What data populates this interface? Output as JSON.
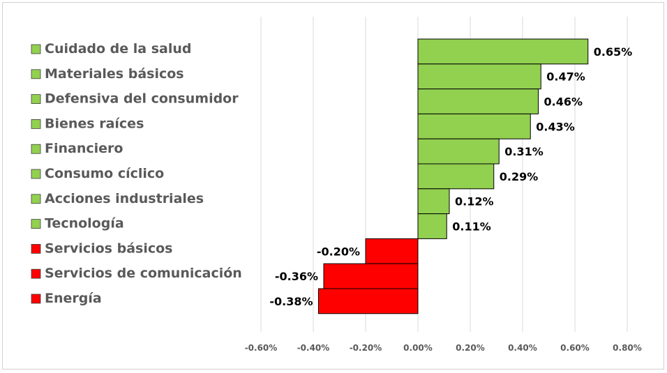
{
  "chart_data": {
    "type": "bar",
    "orientation": "horizontal",
    "categories": [
      "Cuidado de la salud",
      "Materiales básicos",
      "Defensiva del consumidor",
      "Bienes raíces",
      "Financiero",
      "Consumo cíclico",
      "Acciones industriales",
      "Tecnología",
      "Servicios básicos",
      "Servicios de comunicación",
      "Energía"
    ],
    "values": [
      0.65,
      0.47,
      0.46,
      0.43,
      0.31,
      0.29,
      0.12,
      0.11,
      -0.2,
      -0.36,
      -0.38
    ],
    "value_labels": [
      "0.65%",
      "0.47%",
      "0.46%",
      "0.43%",
      "0.31%",
      "0.29%",
      "0.12%",
      "0.11%",
      "-0.20%",
      "-0.36%",
      "-0.38%"
    ],
    "xlim": [
      -0.6,
      0.8
    ],
    "x_ticks": [
      -0.6,
      -0.4,
      -0.2,
      0.0,
      0.2,
      0.4,
      0.6,
      0.8
    ],
    "x_tick_labels": [
      "-0.60%",
      "-0.40%",
      "-0.20%",
      "0.00%",
      "0.20%",
      "0.40%",
      "0.60%",
      "0.80%"
    ],
    "grid": "vertical",
    "legend_position": "left",
    "colors": {
      "positive": "#92d050",
      "negative": "#ff0000",
      "gridline": "#d9d9d9",
      "bar_border": "#000000"
    }
  }
}
